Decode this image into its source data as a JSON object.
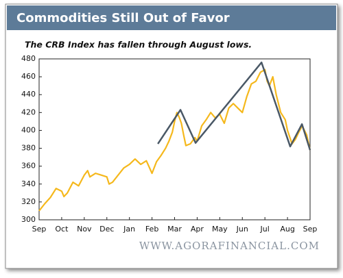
{
  "chart_data": {
    "type": "line",
    "title": "Commodities Still Out of Favor",
    "subtitle": "The CRB Index has fallen through August lows.",
    "watermark": "WWW.AGORAFINANCIAL.COM",
    "xlim": [
      0,
      12
    ],
    "xticks": [
      {
        "value": 0,
        "label": "Sep"
      },
      {
        "value": 1,
        "label": "Oct"
      },
      {
        "value": 2,
        "label": "Nov"
      },
      {
        "value": 3,
        "label": "Dec"
      },
      {
        "value": 4,
        "label": "Jan"
      },
      {
        "value": 5,
        "label": "Feb"
      },
      {
        "value": 6,
        "label": "Mar"
      },
      {
        "value": 7,
        "label": "Apr"
      },
      {
        "value": 8,
        "label": "May"
      },
      {
        "value": 9,
        "label": "Jun"
      },
      {
        "value": 10,
        "label": "Jul"
      },
      {
        "value": 11,
        "label": "Aug"
      },
      {
        "value": 12,
        "label": "Sep"
      }
    ],
    "ylim": [
      300,
      480
    ],
    "yticks": [
      300,
      320,
      340,
      360,
      380,
      400,
      420,
      440,
      460,
      480
    ],
    "series": [
      {
        "color": "#f5b81c",
        "x": [
          0,
          0.25,
          0.5,
          0.75,
          1,
          1.1,
          1.25,
          1.5,
          1.75,
          2,
          2.15,
          2.25,
          2.5,
          2.75,
          3,
          3.1,
          3.25,
          3.5,
          3.75,
          4,
          4.25,
          4.5,
          4.75,
          5,
          5.2,
          5.4,
          5.6,
          5.75,
          5.9,
          6,
          6.1,
          6.2,
          6.3,
          6.4,
          6.5,
          6.7,
          6.9,
          7,
          7.2,
          7.4,
          7.6,
          7.8,
          8,
          8.2,
          8.4,
          8.6,
          8.8,
          9,
          9.2,
          9.4,
          9.6,
          9.8,
          10,
          10.1,
          10.2,
          10.35,
          10.5,
          10.7,
          10.9,
          11,
          11.2,
          11.35,
          11.5,
          11.65,
          11.75,
          11.85,
          12
        ],
        "values": [
          310,
          318,
          325,
          335,
          332,
          326,
          330,
          342,
          338,
          350,
          355,
          348,
          352,
          350,
          348,
          340,
          342,
          350,
          358,
          362,
          368,
          362,
          366,
          352,
          365,
          372,
          380,
          388,
          398,
          410,
          420,
          415,
          408,
          395,
          383,
          385,
          392,
          388,
          405,
          412,
          420,
          414,
          418,
          408,
          425,
          430,
          425,
          420,
          438,
          452,
          455,
          465,
          468,
          455,
          450,
          460,
          440,
          420,
          412,
          400,
          385,
          390,
          398,
          405,
          400,
          395,
          378
        ]
      },
      {
        "color": "#4a5866",
        "x": [
          5.26,
          6.26,
          6.93,
          9.85,
          11.12,
          11.64,
          12
        ],
        "values": [
          385,
          423,
          386,
          476,
          382,
          407,
          378
        ]
      }
    ]
  }
}
